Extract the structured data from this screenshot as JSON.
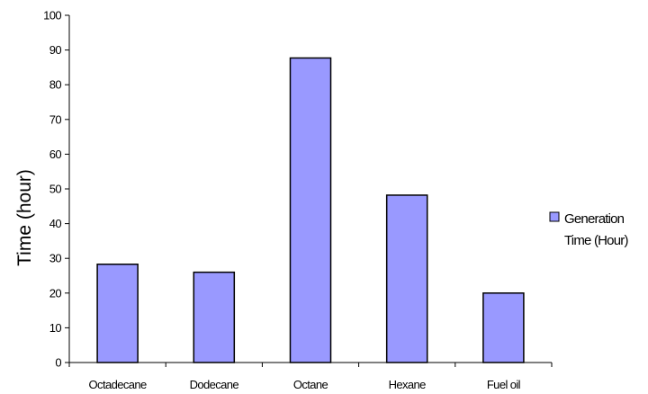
{
  "chart_data": {
    "type": "bar",
    "title": "",
    "xlabel": "",
    "ylabel": "Time (hour)",
    "categories": [
      "Octadecane",
      "Dodecane",
      "Octane",
      "Hexane",
      "Fuel oil"
    ],
    "series": [
      {
        "name": "Generation Time (Hour)",
        "values": [
          28.3,
          26,
          87.7,
          48.2,
          20
        ]
      }
    ],
    "ylim": [
      0,
      100
    ],
    "yticks": [
      0,
      10,
      20,
      30,
      40,
      50,
      60,
      70,
      80,
      90,
      100
    ],
    "grid": false,
    "legend_position": "right",
    "legend": {
      "line1": "Generation",
      "line2": "Time (Hour)"
    },
    "colors": {
      "bar_fill": "#9999FF",
      "bar_stroke": "#000000",
      "axis": "#000000"
    }
  }
}
